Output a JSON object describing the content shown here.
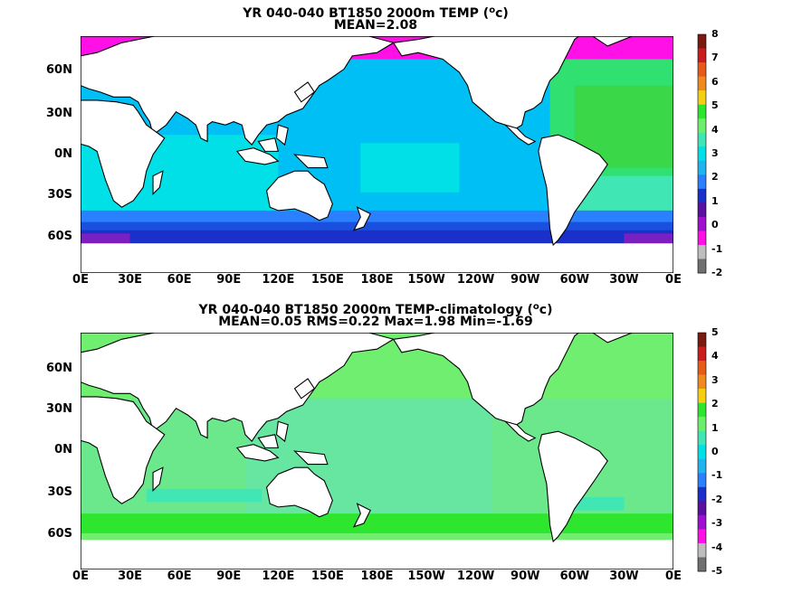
{
  "panels": [
    {
      "id": "top",
      "title_line1_pre": "YR 040-040 BT1850 2000m TEMP (",
      "title_line1_sup": "o",
      "title_line1_post": "c)",
      "title_line2": "MEAN=2.08",
      "colorbar": {
        "labels": [
          "8",
          "7",
          "6",
          "5",
          "4",
          "3",
          "2",
          "1",
          "0",
          "-1",
          "-2"
        ],
        "colors": [
          "#7a1a10",
          "#c81e1e",
          "#e85a1a",
          "#f08a1e",
          "#f5d010",
          "#2ee62e",
          "#6cf06c",
          "#40e6b4",
          "#00e0e6",
          "#20b4f0",
          "#2a80ff",
          "#1a30c8",
          "#5a10a0",
          "#a010d0",
          "#ff10e6",
          "#bebebe",
          "#707070"
        ]
      }
    },
    {
      "id": "bottom",
      "title_line1_pre": "YR 040-040 BT1850 2000m TEMP-climatology (",
      "title_line1_sup": "o",
      "title_line1_post": "c)",
      "title_line2": "MEAN=0.05   RMS=0.22   Max=1.98   Min=-1.69",
      "colorbar": {
        "labels": [
          "5",
          "4",
          "3",
          "2",
          "1",
          "0",
          "-1",
          "-2",
          "-3",
          "-4",
          "-5"
        ],
        "colors": [
          "#7a1a10",
          "#c81e1e",
          "#e85a1a",
          "#f08a1e",
          "#f5d010",
          "#2ee62e",
          "#6cf06c",
          "#40e6b4",
          "#00e0e6",
          "#20b4f0",
          "#2a80ff",
          "#1a30c8",
          "#5a10a0",
          "#a010d0",
          "#ff10e6",
          "#bebebe",
          "#707070"
        ]
      }
    }
  ],
  "lat_labels": [
    "60N",
    "30N",
    "0N",
    "30S",
    "60S"
  ],
  "lon_labels": [
    "0E",
    "30E",
    "60E",
    "90E",
    "120E",
    "150E",
    "180E",
    "150W",
    "120W",
    "90W",
    "60W",
    "30W",
    "0E"
  ]
}
